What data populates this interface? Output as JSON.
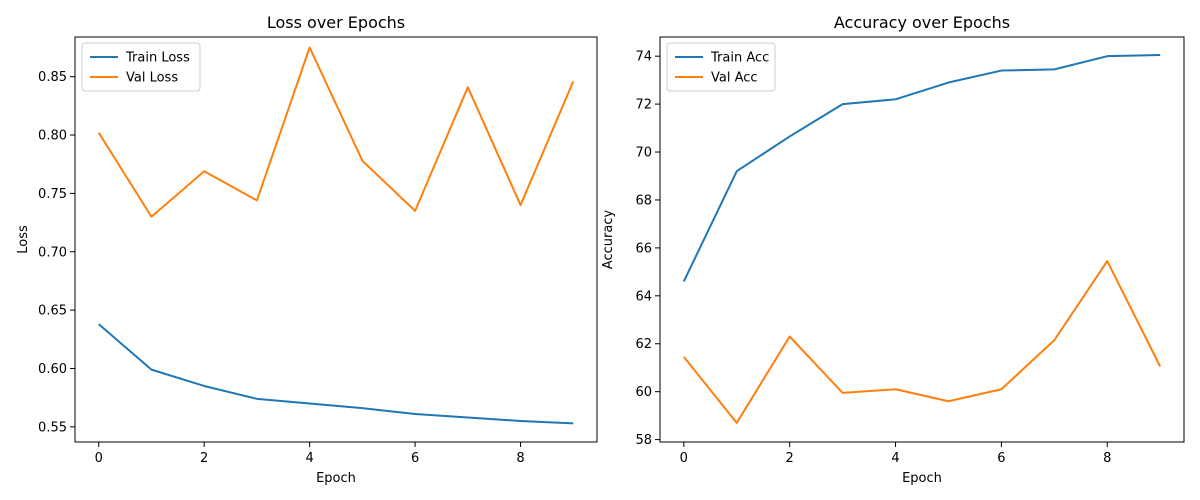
{
  "chart_data": [
    {
      "type": "line",
      "title": "Loss over Epochs",
      "xlabel": "Epoch",
      "ylabel": "Loss",
      "xlim": [
        -0.45,
        9.45
      ],
      "ylim": [
        0.537,
        0.884
      ],
      "xticks": [
        0,
        2,
        4,
        6,
        8
      ],
      "xtick_labels": [
        "0",
        "2",
        "4",
        "6",
        "8"
      ],
      "yticks": [
        0.55,
        0.6,
        0.65,
        0.7,
        0.75,
        0.8,
        0.85
      ],
      "ytick_labels": [
        "0.55",
        "0.60",
        "0.65",
        "0.70",
        "0.75",
        "0.80",
        "0.85"
      ],
      "legend_position": "upper-left",
      "grid": false,
      "x": [
        0,
        1,
        2,
        3,
        4,
        5,
        6,
        7,
        8,
        9
      ],
      "series": [
        {
          "name": "Train Loss",
          "color": "#1f77b4",
          "values": [
            0.638,
            0.599,
            0.585,
            0.574,
            0.57,
            0.566,
            0.561,
            0.558,
            0.555,
            0.553
          ]
        },
        {
          "name": "Val Loss",
          "color": "#ff7f0e",
          "values": [
            0.802,
            0.73,
            0.769,
            0.744,
            0.875,
            0.778,
            0.735,
            0.841,
            0.74,
            0.846
          ]
        }
      ]
    },
    {
      "type": "line",
      "title": "Accuracy over Epochs",
      "xlabel": "Epoch",
      "ylabel": "Accuracy",
      "xlim": [
        -0.45,
        9.45
      ],
      "ylim": [
        57.9,
        74.8
      ],
      "xticks": [
        0,
        2,
        4,
        6,
        8
      ],
      "xtick_labels": [
        "0",
        "2",
        "4",
        "6",
        "8"
      ],
      "yticks": [
        58,
        60,
        62,
        64,
        66,
        68,
        70,
        72,
        74
      ],
      "ytick_labels": [
        "58",
        "60",
        "62",
        "64",
        "66",
        "68",
        "70",
        "72",
        "74"
      ],
      "legend_position": "upper-left",
      "grid": false,
      "x": [
        0,
        1,
        2,
        3,
        4,
        5,
        6,
        7,
        8,
        9
      ],
      "series": [
        {
          "name": "Train Acc",
          "color": "#1f77b4",
          "values": [
            64.6,
            69.2,
            70.65,
            72.0,
            72.2,
            72.9,
            73.4,
            73.45,
            74.0,
            74.05
          ]
        },
        {
          "name": "Val Acc",
          "color": "#ff7f0e",
          "values": [
            61.45,
            58.7,
            62.3,
            59.95,
            60.1,
            59.6,
            60.1,
            62.15,
            65.45,
            61.05
          ]
        }
      ]
    }
  ]
}
